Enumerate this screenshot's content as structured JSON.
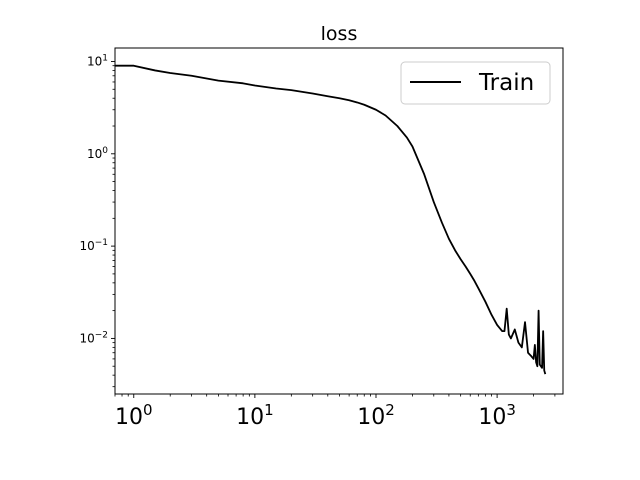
{
  "chart_data": {
    "type": "line",
    "title": "loss",
    "xlabel": "",
    "ylabel": "",
    "xscale": "log",
    "yscale": "log",
    "xlim": [
      0.7,
      3500
    ],
    "ylim": [
      0.0025,
      14
    ],
    "grid": false,
    "legend_position": "top-right",
    "x_ticks": [
      {
        "value": 1,
        "base": "10",
        "exp": "0"
      },
      {
        "value": 10,
        "base": "10",
        "exp": "1"
      },
      {
        "value": 100,
        "base": "10",
        "exp": "2"
      },
      {
        "value": 1000,
        "base": "10",
        "exp": "3"
      }
    ],
    "y_ticks": [
      {
        "value": 10,
        "base": "10",
        "exp": "1"
      },
      {
        "value": 1,
        "base": "10",
        "exp": "0"
      },
      {
        "value": 0.1,
        "base": "10",
        "exp": "−1"
      },
      {
        "value": 0.01,
        "base": "10",
        "exp": "−2"
      }
    ],
    "series": [
      {
        "name": "Train",
        "color": "#000000",
        "x": [
          0.7,
          1,
          1.5,
          2,
          3,
          5,
          8,
          10,
          15,
          20,
          30,
          40,
          50,
          60,
          70,
          80,
          100,
          120,
          150,
          180,
          200,
          250,
          300,
          350,
          400,
          450,
          500,
          550,
          600,
          650,
          700,
          800,
          900,
          1000,
          1100,
          1150,
          1200,
          1250,
          1300,
          1400,
          1500,
          1600,
          1700,
          1800,
          1900,
          2000,
          2050,
          2100,
          2150,
          2200,
          2250,
          2300,
          2350,
          2400,
          2450,
          2500
        ],
        "y": [
          9.0,
          9.0,
          8.0,
          7.5,
          7.0,
          6.2,
          5.8,
          5.5,
          5.1,
          4.9,
          4.5,
          4.2,
          4.0,
          3.8,
          3.6,
          3.4,
          3.0,
          2.6,
          2.0,
          1.5,
          1.2,
          0.6,
          0.3,
          0.18,
          0.12,
          0.09,
          0.072,
          0.06,
          0.05,
          0.042,
          0.035,
          0.025,
          0.018,
          0.014,
          0.012,
          0.012,
          0.021,
          0.011,
          0.01,
          0.0125,
          0.009,
          0.008,
          0.015,
          0.007,
          0.0065,
          0.006,
          0.0085,
          0.0055,
          0.005,
          0.02,
          0.0052,
          0.005,
          0.0048,
          0.012,
          0.0045,
          0.0041
        ]
      }
    ]
  }
}
